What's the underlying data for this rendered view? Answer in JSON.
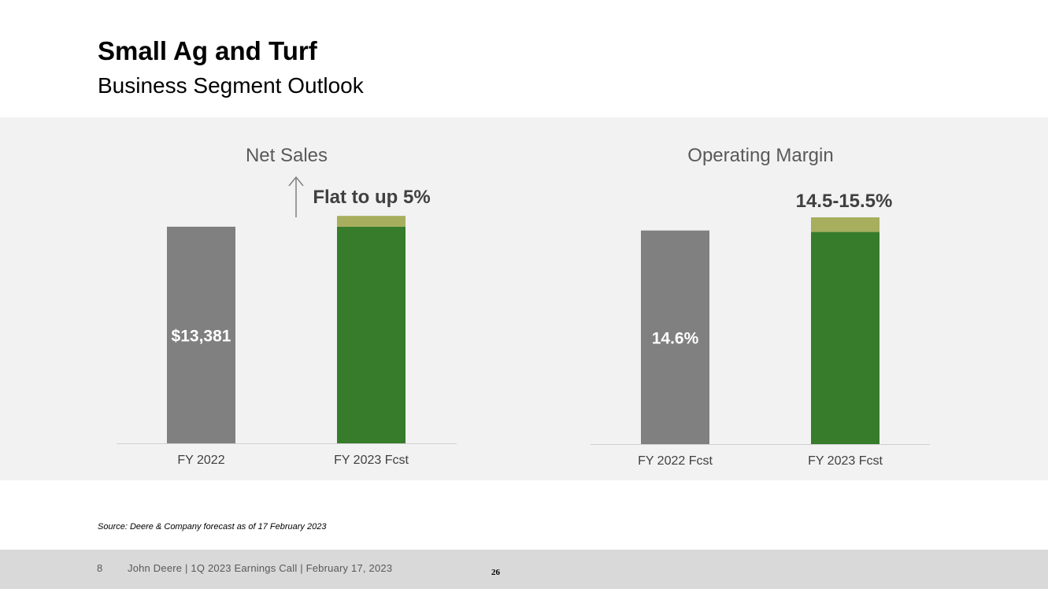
{
  "header": {
    "title": "Small Ag and Turf",
    "subtitle": "Business Segment Outlook"
  },
  "colors": {
    "gray_bar": "#808080",
    "green_bar": "#367c2b",
    "olive_range": "#a7ae5e",
    "panel_bg": "#f2f2f2"
  },
  "chart_data": [
    {
      "type": "bar",
      "title": "Net Sales",
      "categories": [
        "FY 2022",
        "FY 2023 Fcst"
      ],
      "values": [
        13381,
        13381
      ],
      "range_high": [
        null,
        14050
      ],
      "bar_labels": [
        "$13,381",
        ""
      ],
      "annotation": "Flat to up 5%",
      "annotation_arrow": "up",
      "ylim": [
        0,
        14300
      ],
      "xlabel": "",
      "ylabel": ""
    },
    {
      "type": "bar",
      "title": "Operating Margin",
      "categories": [
        "FY 2022 Fcst",
        "FY 2023 Fcst"
      ],
      "values": [
        14.6,
        14.5
      ],
      "range_high": [
        null,
        15.5
      ],
      "bar_labels": [
        "14.6%",
        ""
      ],
      "annotation": "14.5-15.5%",
      "ylim": [
        0,
        15.5
      ],
      "xlabel": "",
      "ylabel": ""
    }
  ],
  "source_note": "Source: Deere & Company forecast as of 17 February 2023",
  "footer": {
    "page_number": "8",
    "text": "John Deere | 1Q 2023 Earnings Call | February 17, 2023",
    "slide_number": "26"
  }
}
